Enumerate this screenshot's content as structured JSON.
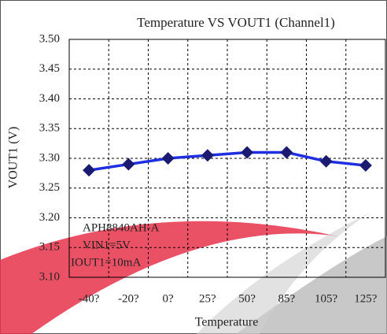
{
  "chart_data": {
    "type": "line",
    "title": "Temperature VS VOUT1 (Channel1)",
    "x_label": "Temperature",
    "y_label": "VOUT1 (V)",
    "categories": [
      "-40?",
      "-20?",
      "0?",
      "25?",
      "50?",
      "85?",
      "105?",
      "125?"
    ],
    "values": [
      3.28,
      3.29,
      3.3,
      3.305,
      3.31,
      3.31,
      3.295,
      3.288
    ],
    "color": "#1f2fe0",
    "marker_color": "#1a1a72",
    "ylim": [
      3.1,
      3.5
    ],
    "yticks": [
      {
        "value": 3.1,
        "label": "3.10"
      },
      3.15,
      {
        "value": 3.2,
        "label": "3.20"
      },
      3.25,
      {
        "value": 3.3,
        "label": "3.30"
      },
      3.35,
      {
        "value": 3.4,
        "label": "3.40"
      },
      3.45,
      {
        "value": 3.5,
        "label": "3.50"
      }
    ],
    "grid": true,
    "annotations": [
      "APH8840AH-A",
      "VIN1=5V",
      "IOUT1=10mA"
    ]
  }
}
